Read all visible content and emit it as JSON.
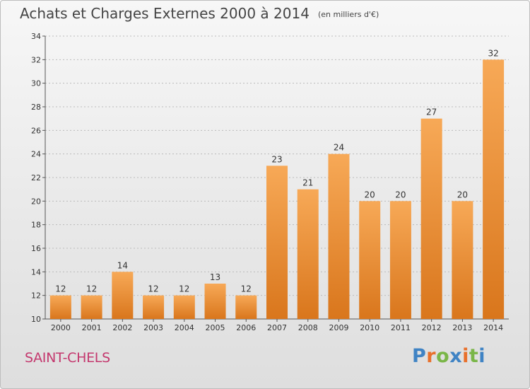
{
  "header": {
    "title": "Achats et Charges Externes 2000 à 2014",
    "unit": "(en milliers d'€)"
  },
  "footer": {
    "commune": "SAINT-CHELS",
    "logo_text": "Proxiti",
    "logo_colors": [
      "#3f83c4",
      "#e8702b",
      "#7ab648",
      "#3f83c4",
      "#e8702b",
      "#7ab648",
      "#3f83c4"
    ]
  },
  "colors": {
    "bar_light": "#f7a957",
    "bar_dark": "#d9761c",
    "axis": "#555555",
    "grid": "#bbbbbb"
  },
  "chart_data": {
    "type": "bar",
    "title": "Achats et Charges Externes 2000 à 2014",
    "subtitle": "(en milliers d'€)",
    "xlabel": "",
    "ylabel": "",
    "categories": [
      "2000",
      "2001",
      "2002",
      "2003",
      "2004",
      "2005",
      "2006",
      "2007",
      "2008",
      "2009",
      "2010",
      "2011",
      "2012",
      "2013",
      "2014"
    ],
    "values": [
      12,
      12,
      14,
      12,
      12,
      13,
      12,
      23,
      21,
      24,
      20,
      20,
      27,
      20,
      32
    ],
    "ylim": [
      10,
      34
    ],
    "yticks": [
      10,
      12,
      14,
      16,
      18,
      20,
      22,
      24,
      26,
      28,
      30,
      32,
      34
    ],
    "grid": true,
    "legend": "none"
  }
}
